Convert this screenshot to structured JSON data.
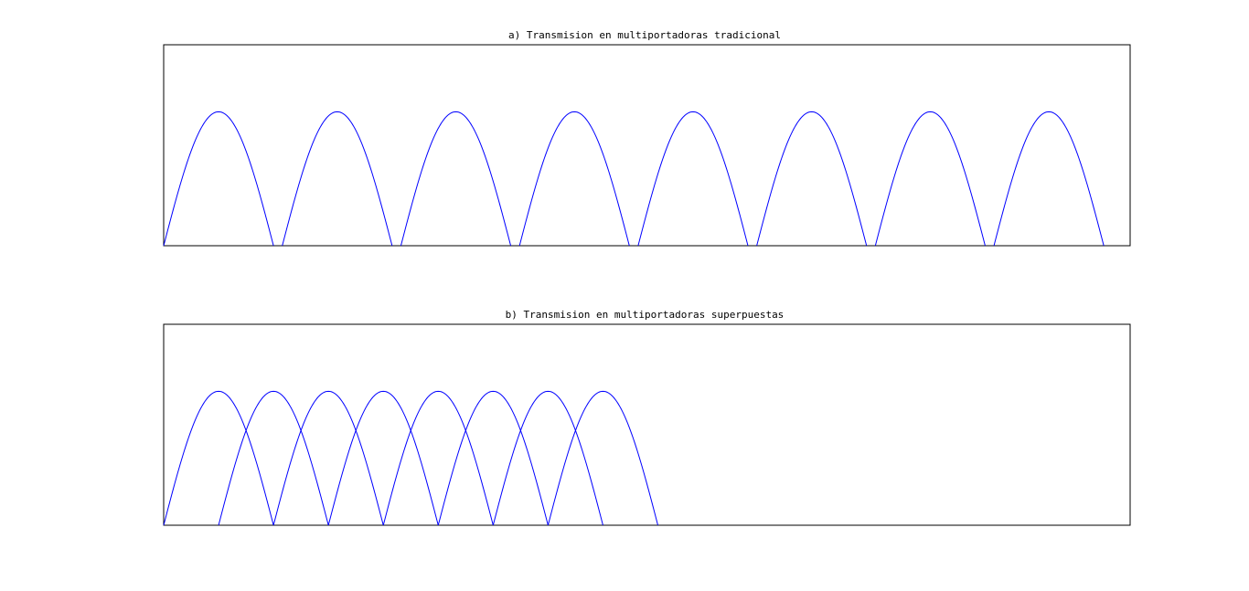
{
  "chart_data": [
    {
      "type": "line",
      "title": "a) Transmision en multiportadoras tradicional",
      "xlabel": "",
      "ylabel": "",
      "xlim": [
        0,
        8.8
      ],
      "ylim": [
        0,
        1.5
      ],
      "grid": false,
      "axis_ticks": false,
      "shape": "half-sine arch",
      "peak": 1.0,
      "series": [
        {
          "start": 0.0,
          "end": 1.0
        },
        {
          "start": 1.08,
          "end": 2.08
        },
        {
          "start": 2.16,
          "end": 3.16
        },
        {
          "start": 3.24,
          "end": 4.24
        },
        {
          "start": 4.32,
          "end": 5.32
        },
        {
          "start": 5.4,
          "end": 6.4
        },
        {
          "start": 6.48,
          "end": 7.48
        },
        {
          "start": 7.56,
          "end": 8.56
        }
      ],
      "color": "#0000ff"
    },
    {
      "type": "line",
      "title": "b) Transmision en multiportadoras superpuestas",
      "xlabel": "",
      "ylabel": "",
      "xlim": [
        0,
        8.8
      ],
      "ylim": [
        0,
        1.5
      ],
      "grid": false,
      "axis_ticks": false,
      "shape": "half-sine arch",
      "peak": 1.0,
      "series": [
        {
          "start": 0.0,
          "end": 1.0
        },
        {
          "start": 0.5,
          "end": 1.5
        },
        {
          "start": 1.0,
          "end": 2.0
        },
        {
          "start": 1.5,
          "end": 2.5
        },
        {
          "start": 2.0,
          "end": 3.0
        },
        {
          "start": 2.5,
          "end": 3.5
        },
        {
          "start": 3.0,
          "end": 4.0
        },
        {
          "start": 3.5,
          "end": 4.5
        }
      ],
      "color": "#0000ff"
    }
  ]
}
